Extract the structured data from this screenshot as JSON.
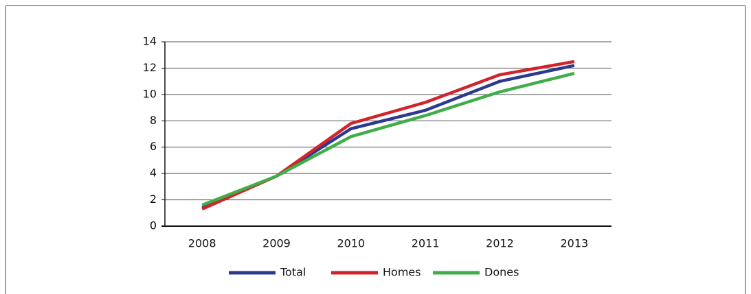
{
  "chart_data": {
    "type": "line",
    "categories": [
      "2008",
      "2009",
      "2010",
      "2011",
      "2012",
      "2013"
    ],
    "series": [
      {
        "name": "Total",
        "color": "#2b3990",
        "values": [
          1.4,
          3.8,
          7.4,
          8.8,
          11.0,
          12.2
        ]
      },
      {
        "name": "Homes",
        "color": "#d2232a",
        "values": [
          1.3,
          3.8,
          7.8,
          9.4,
          11.5,
          12.5
        ]
      },
      {
        "name": "Dones",
        "color": "#3fae49",
        "values": [
          1.6,
          3.8,
          6.8,
          8.4,
          10.2,
          11.6
        ]
      }
    ],
    "ylim": [
      0,
      14
    ],
    "yticks": [
      0,
      2,
      4,
      6,
      8,
      10,
      12,
      14
    ],
    "grid": true,
    "legend": "bottom"
  }
}
